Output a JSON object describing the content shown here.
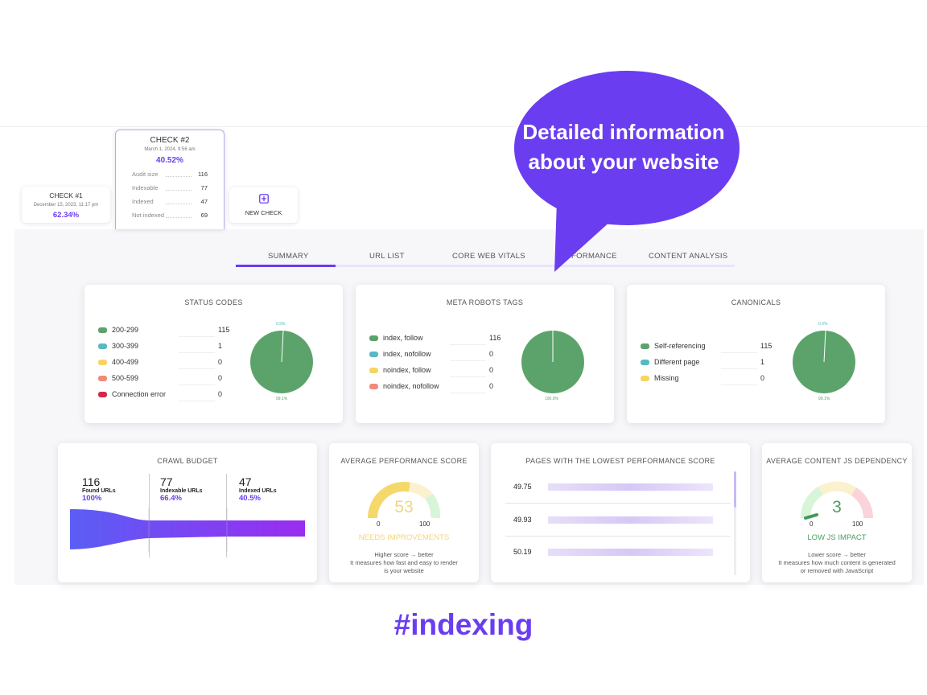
{
  "bubble": {
    "line1": "Detailed information",
    "line2": "about your website"
  },
  "hashtag": "#indexing",
  "checks": [
    {
      "title": "CHECK #1",
      "date": "December 15, 2023, 11:17 pm",
      "percent": "62.34%"
    },
    {
      "title": "CHECK #2",
      "date": "March 1, 2024, 9:56 am",
      "percent": "40.52%",
      "rows": [
        {
          "label": "Audit size",
          "value": "116"
        },
        {
          "label": "Indexable",
          "value": "77"
        },
        {
          "label": "Indexed",
          "value": "47"
        },
        {
          "label": "Not indexed",
          "value": "69"
        }
      ]
    }
  ],
  "new_check": {
    "label": "NEW CHECK",
    "icon": "plus-square-icon"
  },
  "tabs": [
    "SUMMARY",
    "URL LIST",
    "CORE WEB VITALS",
    "FORMANCE",
    "CONTENT ANALYSIS"
  ],
  "status_codes": {
    "title": "STATUS CODES",
    "items": [
      {
        "label": "200-299",
        "value": "115",
        "color": "#5ba36a"
      },
      {
        "label": "300-399",
        "value": "1",
        "color": "#56b9c4"
      },
      {
        "label": "400-499",
        "value": "0",
        "color": "#f5d564"
      },
      {
        "label": "500-599",
        "value": "0",
        "color": "#f28a7a"
      },
      {
        "label": "Connection error",
        "value": "0",
        "color": "#d6294a"
      }
    ],
    "pie_top": "0.9%",
    "pie_bottom": "99.1%"
  },
  "meta_robots": {
    "title": "META ROBOTS TAGS",
    "items": [
      {
        "label": "index, follow",
        "value": "116",
        "color": "#5ba36a"
      },
      {
        "label": "index, nofollow",
        "value": "0",
        "color": "#56b9c4"
      },
      {
        "label": "noindex, follow",
        "value": "0",
        "color": "#f5d564"
      },
      {
        "label": "noindex, nofollow",
        "value": "0",
        "color": "#f28a7a"
      }
    ],
    "pie_bottom": "100.0%"
  },
  "canonicals": {
    "title": "CANONICALS",
    "items": [
      {
        "label": "Self-referencing",
        "value": "115",
        "color": "#5ba36a"
      },
      {
        "label": "Different page",
        "value": "1",
        "color": "#56b9c4"
      },
      {
        "label": "Missing",
        "value": "0",
        "color": "#f5d564"
      }
    ],
    "pie_top": "0.9%",
    "pie_bottom": "99.1%"
  },
  "crawl_budget": {
    "title": "CRAWL BUDGET",
    "cols": [
      {
        "num": "116",
        "label": "Found URLs",
        "pct": "100%"
      },
      {
        "num": "77",
        "label": "Indexable URLs",
        "pct": "66.4%"
      },
      {
        "num": "47",
        "label": "Indexed URLs",
        "pct": "40.5%"
      }
    ]
  },
  "avg_perf": {
    "title": "AVERAGE PERFORMANCE SCORE",
    "score": "53",
    "min": "0",
    "max": "100",
    "status": "NEEDS IMPROVEMENTS",
    "note1": "Higher score → better",
    "note2": "It measures how fast and easy to render",
    "note3": "is your website"
  },
  "lowest_perf": {
    "title": "PAGES WITH THE LOWEST PERFORMANCE SCORE",
    "rows": [
      "49.75",
      "49.93",
      "50.19"
    ]
  },
  "js_dep": {
    "title": "AVERAGE CONTENT JS DEPENDENCY",
    "score": "3",
    "min": "0",
    "max": "100",
    "status": "LOW JS IMPACT",
    "note1": "Lower score → better",
    "note2": "It measures how much content is generated",
    "note3": "or removed with JavaScript"
  }
}
